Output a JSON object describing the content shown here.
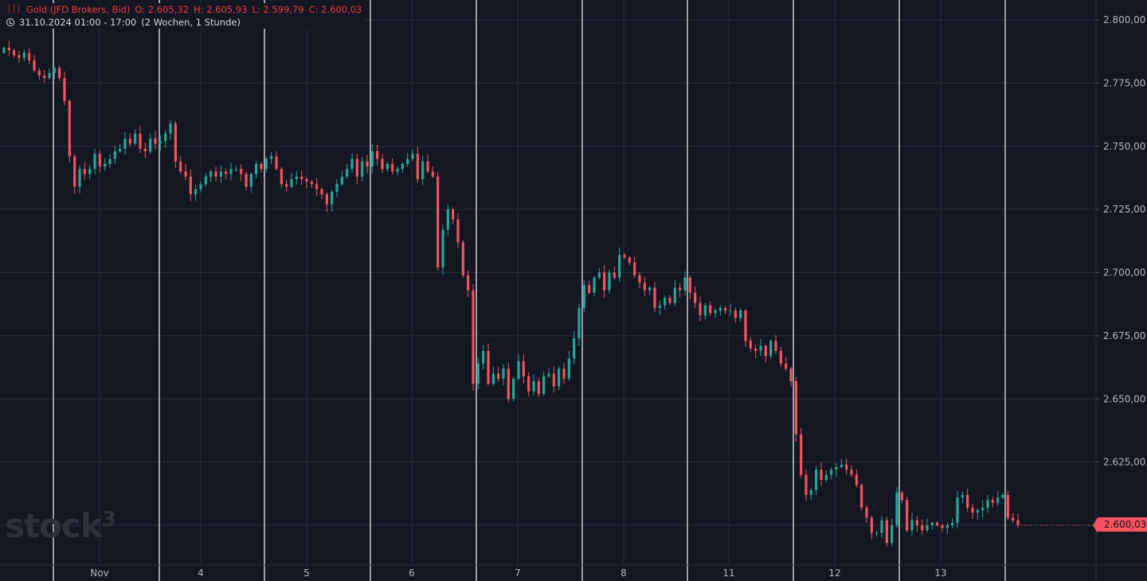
{
  "legend": {
    "title": "Gold (JFD Brokers, Bid)",
    "open_label": "O: 2.605,32",
    "high_label": "H: 2.605,93",
    "low_label": "L: 2.599,79",
    "close_label": "C: 2.600,03",
    "range": "31.10.2024 01:00 - 17:00",
    "period": "(2 Wochen, 1 Stunde)",
    "icon": "bars-icon",
    "clock_icon": "clock-icon"
  },
  "watermark": {
    "text": "stock",
    "superscript": "3"
  },
  "last_price": "2.600,03",
  "colors": {
    "background": "#131722",
    "up": "#26a69a",
    "down": "#f7525f",
    "grid": "#2a2e39",
    "session_line": "#c8cbd2"
  },
  "chart_data": {
    "type": "candlestick",
    "title": "Gold (JFD Brokers, Bid)",
    "interval": "1 Stunde",
    "ylim": [
      2590,
      2805
    ],
    "yticks": [
      2600,
      2625,
      2650,
      2675,
      2700,
      2725,
      2750,
      2775,
      2800
    ],
    "ytick_labels": [
      "2.600,00",
      "2.625,00",
      "2.650,00",
      "2.675,00",
      "2.700,00",
      "2.725,00",
      "2.750,00",
      "2.775,00",
      "2.800,00"
    ],
    "x_labels": [
      "Nov",
      "4",
      "5",
      "6",
      "7",
      "8",
      "11",
      "12",
      "13"
    ],
    "closes": [
      2789,
      2788,
      2786,
      2785,
      2787,
      2784,
      2780,
      2778,
      2777,
      2779,
      2781,
      2777,
      2768,
      2746,
      2734,
      2741,
      2739,
      2741,
      2747,
      2742,
      2743,
      2745,
      2748,
      2749,
      2753,
      2751,
      2755,
      2749,
      2748,
      2753,
      2751,
      2752,
      2755,
      2759,
      2744,
      2740,
      2738,
      2731,
      2733,
      2735,
      2738,
      2740,
      2738,
      2740,
      2739,
      2741,
      2741,
      2739,
      2734,
      2739,
      2743,
      2741,
      2745,
      2746,
      2741,
      2735,
      2734,
      2737,
      2738,
      2737,
      2736,
      2735,
      2733,
      2731,
      2727,
      2732,
      2735,
      2738,
      2741,
      2745,
      2738,
      2744,
      2742,
      2748,
      2745,
      2741,
      2743,
      2740,
      2741,
      2743,
      2745,
      2747,
      2737,
      2744,
      2740,
      2738,
      2702,
      2717,
      2725,
      2721,
      2712,
      2699,
      2693,
      2656,
      2664,
      2669,
      2656,
      2660,
      2658,
      2662,
      2650,
      2658,
      2665,
      2659,
      2653,
      2657,
      2652,
      2659,
      2660,
      2655,
      2662,
      2658,
      2666,
      2674,
      2686,
      2695,
      2692,
      2698,
      2700,
      2693,
      2700,
      2698,
      2707,
      2706,
      2704,
      2699,
      2696,
      2693,
      2694,
      2686,
      2687,
      2690,
      2688,
      2694,
      2693,
      2698,
      2692,
      2688,
      2683,
      2687,
      2684,
      2685,
      2686,
      2685,
      2685,
      2682,
      2685,
      2673,
      2670,
      2669,
      2671,
      2667,
      2673,
      2669,
      2664,
      2662,
      2657,
      2636,
      2620,
      2612,
      2614,
      2622,
      2618,
      2620,
      2622,
      2623,
      2624,
      2622,
      2620,
      2616,
      2607,
      2603,
      2597,
      2597,
      2602,
      2593,
      2600,
      2613,
      2610,
      2598,
      2602,
      2600,
      2598,
      2600,
      2601,
      2600,
      2599,
      2600,
      2601,
      2611,
      2612,
      2607,
      2605,
      2606,
      2607,
      2610,
      2609,
      2611,
      2612,
      2603,
      2602,
      2600.03
    ]
  }
}
